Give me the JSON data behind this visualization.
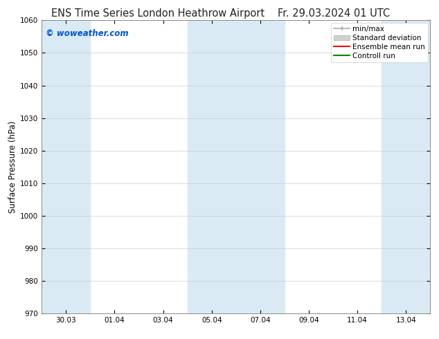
{
  "title_left": "ENS Time Series London Heathrow Airport",
  "title_right": "Fr. 29.03.2024 01 UTC",
  "ylabel": "Surface Pressure (hPa)",
  "ylim": [
    970,
    1060
  ],
  "yticks": [
    970,
    980,
    990,
    1000,
    1010,
    1020,
    1030,
    1040,
    1050,
    1060
  ],
  "xtick_labels": [
    "30.03",
    "01.04",
    "03.04",
    "05.04",
    "07.04",
    "09.04",
    "11.04",
    "13.04"
  ],
  "xtick_positions": [
    1,
    3,
    5,
    7,
    9,
    11,
    13,
    15
  ],
  "xlim": [
    0,
    16
  ],
  "shaded_bands": [
    {
      "x_start": 0,
      "x_end": 2,
      "color": "#daeaf5"
    },
    {
      "x_start": 6,
      "x_end": 10,
      "color": "#daeaf5"
    },
    {
      "x_start": 14,
      "x_end": 16,
      "color": "#daeaf5"
    }
  ],
  "watermark_text": "© woweather.com",
  "watermark_color": "#0055cc",
  "bg_color": "#ffffff",
  "axes_bg_color": "#ffffff",
  "spine_color": "#888888",
  "title_fontsize": 10.5,
  "label_fontsize": 8.5,
  "tick_fontsize": 7.5,
  "legend_fontsize": 7.5,
  "legend_items": [
    {
      "label": "min/max",
      "color": "#aaaaaa",
      "type": "errorbar"
    },
    {
      "label": "Standard deviation",
      "color": "#cccccc",
      "type": "fill"
    },
    {
      "label": "Ensemble mean run",
      "color": "#ff0000",
      "type": "line"
    },
    {
      "label": "Controll run",
      "color": "#008800",
      "type": "line"
    }
  ]
}
